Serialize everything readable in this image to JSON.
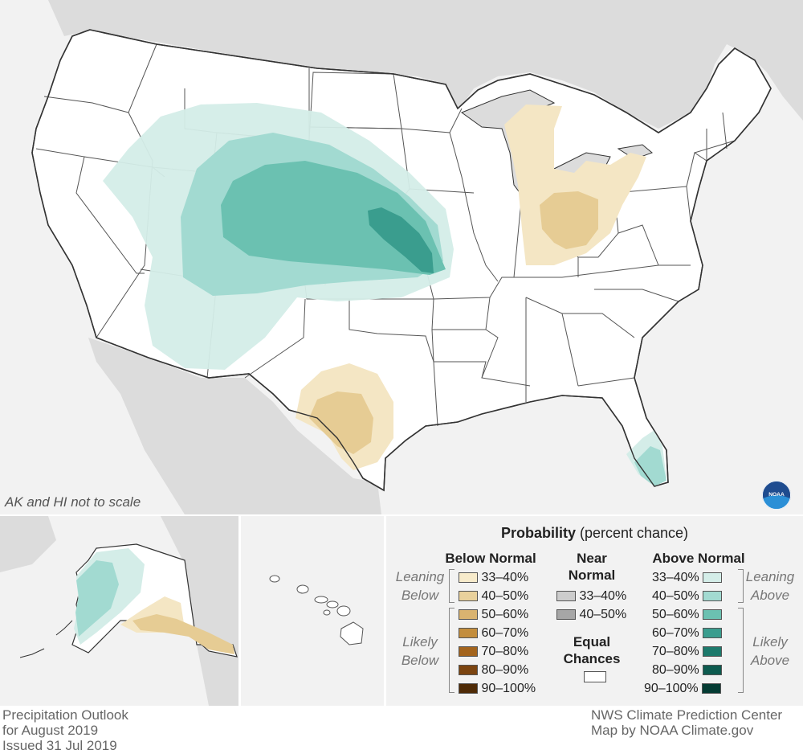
{
  "map": {
    "note": "AK and HI not to scale",
    "colors": {
      "ocean": "#f2f2f2",
      "land_foreign": "#dcdcdc",
      "state_fill": "#ffffff",
      "state_border": "#333333"
    },
    "regions": [
      {
        "category": "Above Normal",
        "level": "33–40%",
        "color": "#d4ede8",
        "areas": [
          "West / Great Basin & Plains",
          "Florida peninsula",
          "Western Alaska"
        ]
      },
      {
        "category": "Above Normal",
        "level": "40–50%",
        "color": "#a2dad1",
        "areas": [
          "Central Rockies & Plains",
          "Southern Florida",
          "Western Alaska coast"
        ]
      },
      {
        "category": "Above Normal",
        "level": "50–60%",
        "color": "#6bc1b1",
        "areas": [
          "Wyoming / Colorado / Nebraska / Kansas"
        ]
      },
      {
        "category": "Above Normal",
        "level": "60–70%",
        "color": "#3a9d8e",
        "areas": [
          "Eastern Kansas / Nebraska"
        ]
      },
      {
        "category": "Below Normal",
        "level": "33–40%",
        "color": "#f4e6c4",
        "areas": [
          "Ohio Valley & Great Lakes",
          "Texas",
          "Southern Alaska"
        ]
      },
      {
        "category": "Below Normal",
        "level": "40–50%",
        "color": "#e6cc94",
        "areas": [
          "Indiana / Ohio",
          "South Texas",
          "Southern Alaska coast"
        ]
      }
    ]
  },
  "legend": {
    "title": "Probability",
    "subtitle": "(percent chance)",
    "below": {
      "header": "Below Normal",
      "leaning_label": [
        "Leaning",
        "Below"
      ],
      "likely_label": [
        "Likely",
        "Below"
      ],
      "items": [
        {
          "label": "33–40%",
          "color": "#f7ebcb"
        },
        {
          "label": "40–50%",
          "color": "#e9d19c"
        },
        {
          "label": "50–60%",
          "color": "#d9b370"
        },
        {
          "label": "60–70%",
          "color": "#c38d3c"
        },
        {
          "label": "70–80%",
          "color": "#a3641d"
        },
        {
          "label": "80–90%",
          "color": "#7b4410"
        },
        {
          "label": "90–100%",
          "color": "#4e2a06"
        }
      ]
    },
    "near": {
      "header": [
        "Near",
        "Normal"
      ],
      "items": [
        {
          "label": "33–40%",
          "color": "#cccccc"
        },
        {
          "label": "40–50%",
          "color": "#a6a6a6"
        }
      ]
    },
    "equal": {
      "header": [
        "Equal",
        "Chances"
      ],
      "color": "#ffffff"
    },
    "above": {
      "header": "Above Normal",
      "leaning_label": [
        "Leaning",
        "Above"
      ],
      "likely_label": [
        "Likely",
        "Above"
      ],
      "items": [
        {
          "label": "33–40%",
          "color": "#d4ede8"
        },
        {
          "label": "40–50%",
          "color": "#a2dad1"
        },
        {
          "label": "50–60%",
          "color": "#6bc1b1"
        },
        {
          "label": "60–70%",
          "color": "#3a9d8e"
        },
        {
          "label": "70–80%",
          "color": "#1d7a6c"
        },
        {
          "label": "80–90%",
          "color": "#0d5b4f"
        },
        {
          "label": "90–100%",
          "color": "#043b33"
        }
      ]
    }
  },
  "footer": {
    "left": [
      "Precipitation Outlook",
      "for August 2019",
      "Issued 31 Jul 2019"
    ],
    "right": [
      "NWS Climate Prediction Center",
      "Map by NOAA Climate.gov"
    ]
  },
  "logo": {
    "text": "NOAA",
    "colors": [
      "#1f4c8f",
      "#2b8fd6"
    ]
  }
}
